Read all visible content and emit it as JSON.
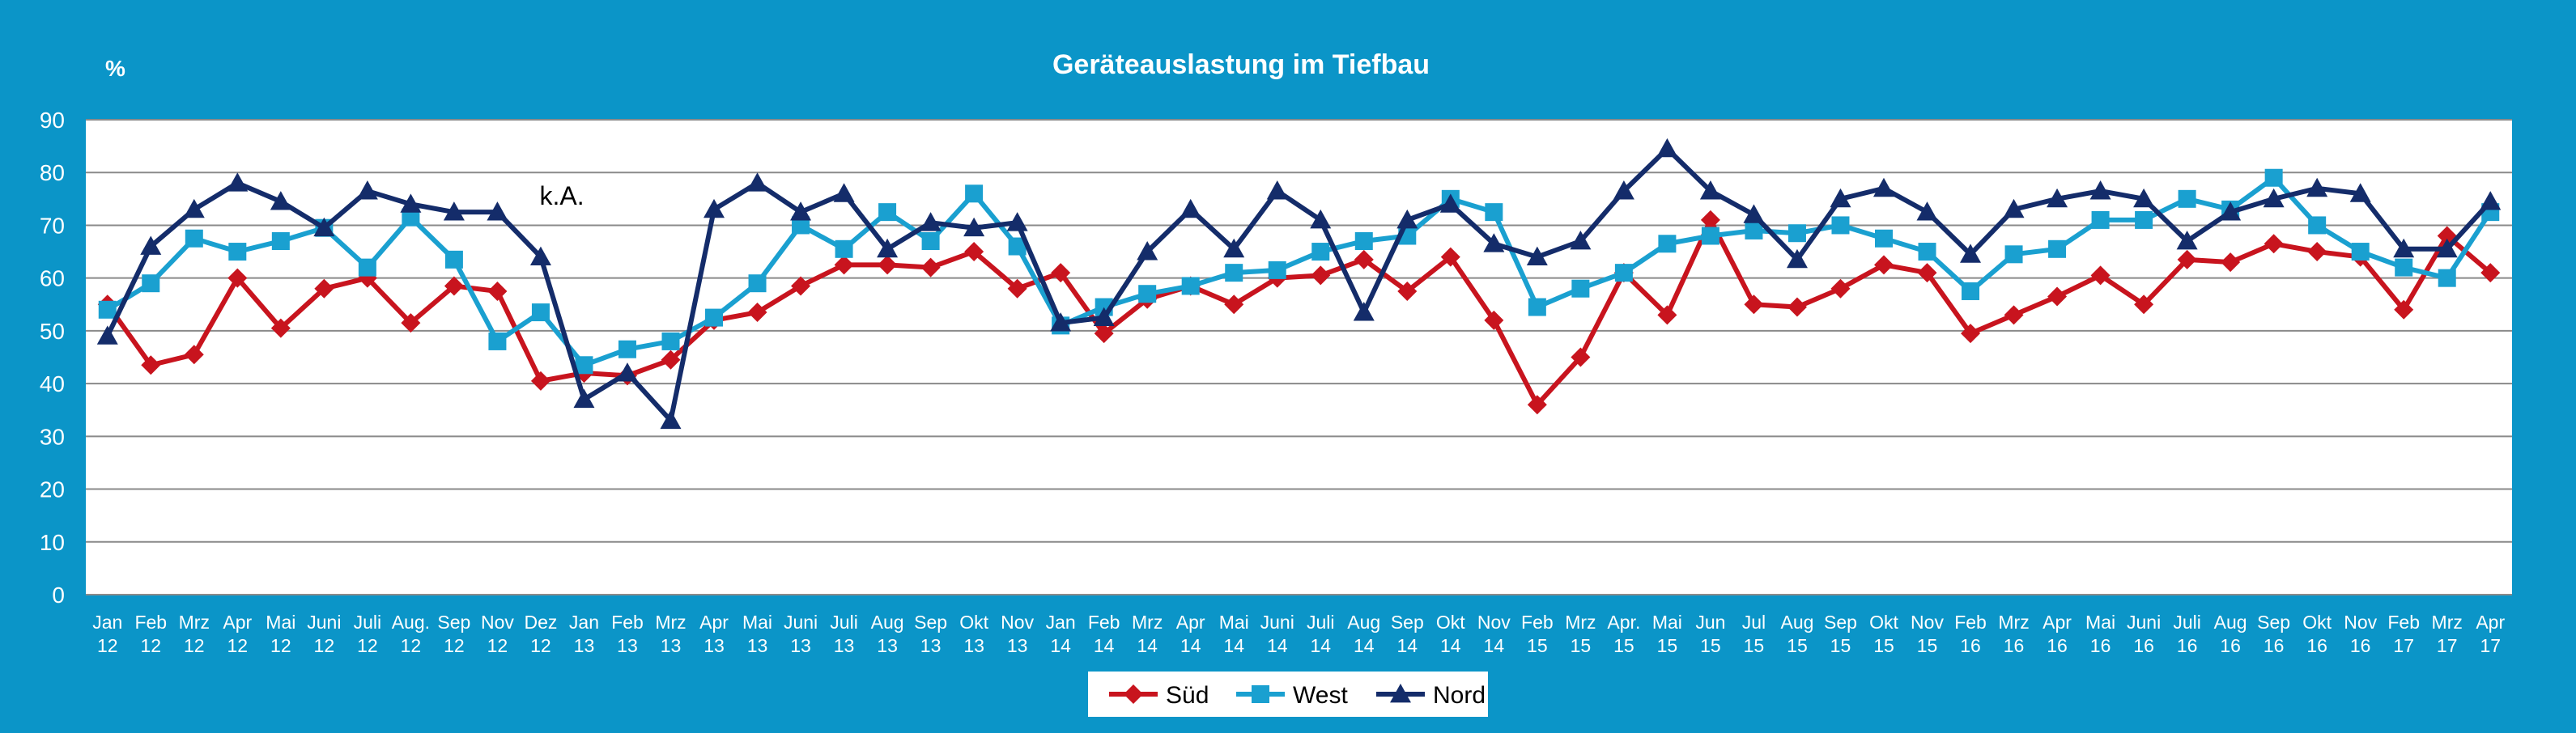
{
  "chart_data": {
    "type": "line",
    "title": "Geräteauslastung im Tiefbau",
    "ylabel": "%",
    "ylim": [
      0,
      90
    ],
    "yticks": [
      0,
      10,
      20,
      30,
      40,
      50,
      60,
      70,
      80,
      90
    ],
    "grid": "horizontal",
    "legend_position": "bottom",
    "categories": [
      [
        "Jan",
        "12"
      ],
      [
        "Feb",
        "12"
      ],
      [
        "Mrz",
        "12"
      ],
      [
        "Apr",
        "12"
      ],
      [
        "Mai",
        "12"
      ],
      [
        "Juni",
        "12"
      ],
      [
        "Juli",
        "12"
      ],
      [
        "Aug.",
        "12"
      ],
      [
        "Sep",
        "12"
      ],
      [
        "Nov",
        "12"
      ],
      [
        "Dez",
        "12"
      ],
      [
        "Jan",
        "13"
      ],
      [
        "Feb",
        "13"
      ],
      [
        "Mrz",
        "13"
      ],
      [
        "Apr",
        "13"
      ],
      [
        "Mai",
        "13"
      ],
      [
        "Juni",
        "13"
      ],
      [
        "Juli",
        "13"
      ],
      [
        "Aug",
        "13"
      ],
      [
        "Sep",
        "13"
      ],
      [
        "Okt",
        "13"
      ],
      [
        "Nov",
        "13"
      ],
      [
        "Jan",
        "14"
      ],
      [
        "Feb",
        "14"
      ],
      [
        "Mrz",
        "14"
      ],
      [
        "Apr",
        "14"
      ],
      [
        "Mai",
        "14"
      ],
      [
        "Juni",
        "14"
      ],
      [
        "Juli",
        "14"
      ],
      [
        "Aug",
        "14"
      ],
      [
        "Sep",
        "14"
      ],
      [
        "Okt",
        "14"
      ],
      [
        "Nov",
        "14"
      ],
      [
        "Feb",
        "15"
      ],
      [
        "Mrz",
        "15"
      ],
      [
        "Apr.",
        "15"
      ],
      [
        "Mai",
        "15"
      ],
      [
        "Jun",
        "15"
      ],
      [
        "Jul",
        "15"
      ],
      [
        "Aug",
        "15"
      ],
      [
        "Sep",
        "15"
      ],
      [
        "Okt",
        "15"
      ],
      [
        "Nov",
        "15"
      ],
      [
        "Feb",
        "16"
      ],
      [
        "Mrz",
        "16"
      ],
      [
        "Apr",
        "16"
      ],
      [
        "Mai",
        "16"
      ],
      [
        "Juni",
        "16"
      ],
      [
        "Juli",
        "16"
      ],
      [
        "Aug",
        "16"
      ],
      [
        "Sep",
        "16"
      ],
      [
        "Okt",
        "16"
      ],
      [
        "Nov",
        "16"
      ],
      [
        "Feb",
        "17"
      ],
      [
        "Mrz",
        "17"
      ],
      [
        "Apr",
        "17"
      ]
    ],
    "series": [
      {
        "name": "Süd",
        "color": "#c8141e",
        "marker": "diamond",
        "values": [
          55,
          43.5,
          45.5,
          60,
          50.5,
          58,
          60,
          51.5,
          58.5,
          57.5,
          40.5,
          42,
          41.5,
          44.5,
          52,
          53.5,
          58.5,
          62.5,
          62.5,
          62,
          65,
          58,
          61,
          49.5,
          56,
          58.5,
          55,
          60,
          60.5,
          63.5,
          57.5,
          64,
          52,
          36,
          45,
          61,
          53,
          71,
          55,
          54.5,
          58,
          62.5,
          61,
          49.5,
          53,
          56.5,
          60.5,
          55,
          63.5,
          63,
          66.5,
          65,
          64,
          54,
          68,
          61
        ]
      },
      {
        "name": "West",
        "color": "#1aa0d0",
        "marker": "square",
        "values": [
          54,
          59,
          67.5,
          65,
          67,
          69.5,
          62,
          71.5,
          63.5,
          48,
          53.5,
          43.5,
          46.5,
          48,
          52.5,
          59,
          70,
          65.5,
          72.5,
          67,
          76,
          66,
          51,
          54.5,
          57,
          58.5,
          61,
          61.5,
          65,
          67,
          68,
          75,
          72.5,
          54.5,
          58,
          61,
          66.5,
          68,
          69,
          68.5,
          70,
          67.5,
          65,
          57.5,
          64.5,
          65.5,
          71,
          71,
          75,
          73,
          79,
          70,
          65,
          62,
          60,
          72.5
        ]
      },
      {
        "name": "Nord",
        "color": "#142c6a",
        "marker": "triangle",
        "values": [
          49,
          66,
          73,
          78,
          74.5,
          69.5,
          76.5,
          74,
          72.5,
          72.5,
          64,
          37,
          42,
          33,
          73,
          78,
          72.5,
          76,
          65.5,
          70.5,
          69.5,
          70.5,
          51.5,
          52.5,
          65,
          73,
          65.5,
          76.5,
          71,
          53.5,
          71,
          74,
          66.5,
          64,
          67,
          76.5,
          84.5,
          76.5,
          72,
          63.5,
          75,
          77,
          72.5,
          64.5,
          73,
          75,
          76.5,
          75,
          67,
          72.5,
          75,
          77,
          76,
          65.5,
          65.5,
          74.5
        ]
      }
    ],
    "annotations": [
      {
        "text": "k.A.",
        "x_index": 11
      }
    ]
  }
}
